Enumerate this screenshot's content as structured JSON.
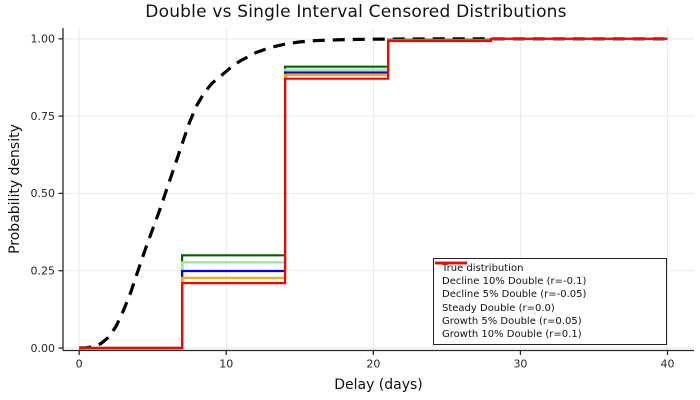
{
  "chart_data": {
    "type": "line",
    "title": "Double vs Single Interval Censored Distributions",
    "xlabel": "Delay (days)",
    "ylabel": "Probability density",
    "x_ticks": [
      0,
      10,
      20,
      30,
      40
    ],
    "x_tick_labels": [
      "0",
      "10",
      "20",
      "30",
      "40"
    ],
    "y_ticks": [
      0,
      0.25,
      0.5,
      0.75,
      1.0
    ],
    "y_tick_labels": [
      "0.00",
      "0.25",
      "0.50",
      "0.75",
      "1.00"
    ],
    "xlim": [
      -1.1,
      41.8
    ],
    "ylim": [
      -0.008,
      1.035
    ],
    "grid": true,
    "legend_position": "bottom-right",
    "grid_color": "#e9e9e9",
    "spine_color": "#2a2a2a",
    "series": [
      {
        "name": "True distribution",
        "color": "#000000",
        "style": "dashed",
        "width": 3.2,
        "x": [
          0,
          0.5,
          1,
          1.5,
          2,
          2.5,
          3,
          3.5,
          4,
          4.5,
          5,
          5.5,
          6,
          6.5,
          7,
          7.5,
          8,
          8.5,
          9,
          9.5,
          10,
          10.5,
          11,
          12,
          13,
          14,
          15,
          16,
          17,
          18,
          19,
          20,
          21,
          22,
          24,
          26,
          28,
          30,
          35,
          40
        ],
        "y": [
          0,
          0.001,
          0.005,
          0.015,
          0.035,
          0.07,
          0.12,
          0.18,
          0.25,
          0.32,
          0.385,
          0.45,
          0.52,
          0.59,
          0.66,
          0.73,
          0.785,
          0.825,
          0.855,
          0.875,
          0.895,
          0.915,
          0.93,
          0.955,
          0.972,
          0.983,
          0.99,
          0.994,
          0.996,
          0.9975,
          0.998,
          0.9988,
          0.9992,
          0.9995,
          0.9998,
          1.0,
          1.0,
          1.0,
          1.0,
          1.0
        ]
      },
      {
        "name": "Decline 10% Double (r=-0.1)",
        "color": "#006400",
        "style": "solid",
        "width": 2.2,
        "x": [
          0,
          7,
          7,
          14,
          14,
          21,
          21,
          28,
          28,
          40
        ],
        "y": [
          0,
          0,
          0.3,
          0.3,
          0.91,
          0.91,
          0.997,
          0.997,
          1.0,
          1.0
        ]
      },
      {
        "name": "Decline 5% Double (r=-0.05)",
        "color": "#90EE90",
        "style": "solid",
        "width": 2.2,
        "x": [
          0,
          7,
          7,
          14,
          14,
          21,
          21,
          28,
          28,
          40
        ],
        "y": [
          0,
          0,
          0.277,
          0.277,
          0.9,
          0.9,
          0.996,
          0.996,
          1.0,
          1.0
        ]
      },
      {
        "name": "Steady Double (r=0.0)",
        "color": "#0000FF",
        "style": "solid",
        "width": 2.2,
        "x": [
          0,
          7,
          7,
          14,
          14,
          21,
          21,
          28,
          28,
          40
        ],
        "y": [
          0,
          0,
          0.249,
          0.249,
          0.891,
          0.891,
          0.995,
          0.995,
          1.0,
          1.0
        ]
      },
      {
        "name": "Growth 5% Double (r=0.05)",
        "color": "#FFA500",
        "style": "solid",
        "width": 2.2,
        "x": [
          0,
          7,
          7,
          14,
          14,
          21,
          21,
          28,
          28,
          40
        ],
        "y": [
          0,
          0,
          0.227,
          0.227,
          0.883,
          0.883,
          0.994,
          0.994,
          1.0,
          1.0
        ]
      },
      {
        "name": "Growth 10% Double (r=0.1)",
        "color": "#FF0000",
        "style": "solid",
        "width": 2.2,
        "x": [
          0,
          7,
          7,
          14,
          14,
          21,
          21,
          28,
          28,
          40
        ],
        "y": [
          0,
          0,
          0.21,
          0.21,
          0.871,
          0.871,
          0.993,
          0.993,
          1.0,
          1.0
        ]
      }
    ]
  }
}
